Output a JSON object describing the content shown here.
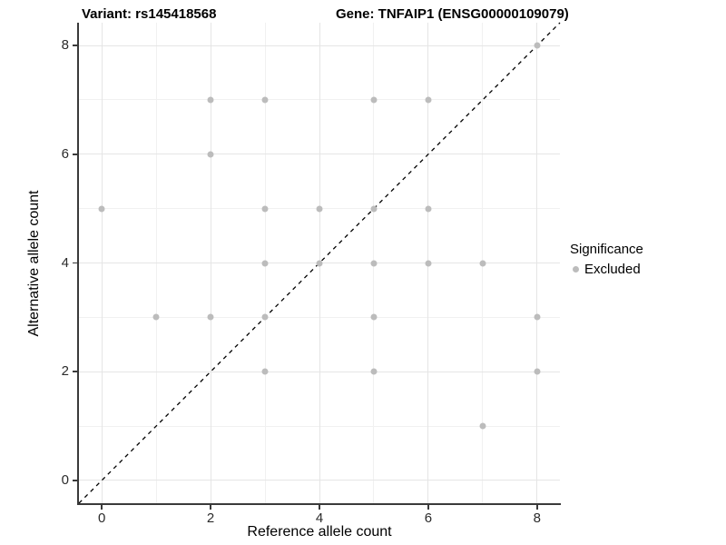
{
  "header": {
    "variant_title": "Variant: rs145418568",
    "gene_title": "Gene: TNFAIP1 (ENSG00000109079)"
  },
  "chart_data": {
    "type": "scatter",
    "xlabel": "Reference allele count",
    "ylabel": "Alternative allele count",
    "xlim": [
      -0.42,
      8.42
    ],
    "ylim": [
      -0.42,
      8.42
    ],
    "x_ticks": [
      0,
      2,
      4,
      6,
      8
    ],
    "y_ticks": [
      0,
      2,
      4,
      6,
      8
    ],
    "x_minor_ticks": [
      1,
      3,
      5,
      7
    ],
    "y_minor_ticks": [
      1,
      3,
      5,
      7
    ],
    "grid": "on",
    "identity_line": {
      "style": "dashed",
      "color": "#000000",
      "from": [
        -0.42,
        -0.42
      ],
      "to": [
        8.42,
        8.42
      ]
    },
    "series": [
      {
        "name": "Excluded",
        "color": "#bcbcbc",
        "points": [
          [
            0,
            5
          ],
          [
            1,
            3
          ],
          [
            2,
            3
          ],
          [
            2,
            6
          ],
          [
            2,
            7
          ],
          [
            3,
            2
          ],
          [
            3,
            3
          ],
          [
            3,
            4
          ],
          [
            3,
            5
          ],
          [
            3,
            7
          ],
          [
            4,
            4
          ],
          [
            4,
            5
          ],
          [
            5,
            2
          ],
          [
            5,
            3
          ],
          [
            5,
            4
          ],
          [
            5,
            5
          ],
          [
            5,
            7
          ],
          [
            6,
            4
          ],
          [
            6,
            5
          ],
          [
            6,
            7
          ],
          [
            7,
            1
          ],
          [
            7,
            4
          ],
          [
            8,
            2
          ],
          [
            8,
            3
          ],
          [
            8,
            8
          ]
        ]
      }
    ],
    "legend": {
      "title": "Significance",
      "position": "right",
      "items": [
        {
          "label": "Excluded",
          "color": "#bcbcbc"
        }
      ]
    }
  },
  "colors": {
    "background": "#ffffff",
    "grid_major": "#e5e5e5",
    "grid_minor": "#f1f1f1",
    "axis_line": "#3a3a3a",
    "point": "#bcbcbc",
    "identity_line": "#000000"
  }
}
